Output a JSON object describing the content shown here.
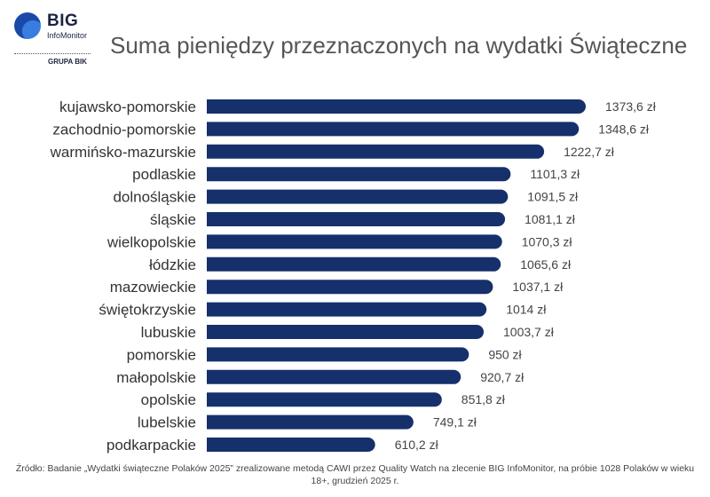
{
  "logo": {
    "brand": "BIG",
    "sub": "InfoMonitor",
    "group": "GRUPA BIK"
  },
  "chart_data": {
    "type": "bar",
    "orientation": "horizontal",
    "title": "Suma pieniędzy przeznaczonych na wydatki Świąteczne",
    "categories": [
      "kujawsko-pomorskie",
      "zachodnio-pomorskie",
      "warmińsko-mazurskie",
      "podlaskie",
      "dolnośląskie",
      "śląskie",
      "wielkopolskie",
      "łódzkie",
      "mazowieckie",
      "świętokrzyskie",
      "lubuskie",
      "pomorskie",
      "małopolskie",
      "opolskie",
      "lubelskie",
      "podkarpackie"
    ],
    "values": [
      1373.6,
      1348.6,
      1222.7,
      1101.3,
      1091.5,
      1081.1,
      1070.3,
      1065.6,
      1037.1,
      1014,
      1003.7,
      950,
      920.7,
      851.8,
      749.1,
      610.2
    ],
    "value_labels": [
      "1373,6 zł",
      "1348,6 zł",
      "1222,7 zł",
      "1101,3 zł",
      "1091,5 zł",
      "1081,1 zł",
      "1070,3 zł",
      "1065,6 zł",
      "1037,1 zł",
      "1014 zł",
      "1003,7 zł",
      "950 zł",
      "920,7 zł",
      "851,8 zł",
      "749,1 zł",
      "610,2 zł"
    ],
    "bar_color": "#15306b",
    "grid": false,
    "legend": "none"
  },
  "source": "Źródło: Badanie „Wydatki świąteczne Polaków 2025” zrealizowane metodą CAWI przez Quality Watch na zlecenie BIG InfoMonitor, na próbie 1028 Polaków w wieku 18+, grudzień 2025 r."
}
